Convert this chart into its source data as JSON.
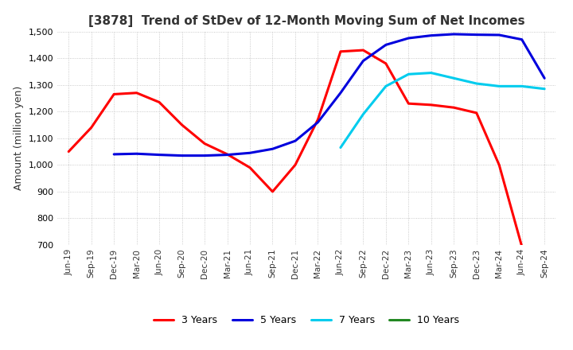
{
  "title": "[3878]  Trend of StDev of 12-Month Moving Sum of Net Incomes",
  "ylabel": "Amount (million yen)",
  "ylim": [
    700,
    1500
  ],
  "yticks": [
    700,
    800,
    900,
    1000,
    1100,
    1200,
    1300,
    1400,
    1500
  ],
  "background_color": "#ffffff",
  "x_labels": [
    "Jun-19",
    "Sep-19",
    "Dec-19",
    "Mar-20",
    "Jun-20",
    "Sep-20",
    "Dec-20",
    "Mar-21",
    "Jun-21",
    "Sep-21",
    "Dec-21",
    "Mar-22",
    "Jun-22",
    "Sep-22",
    "Dec-22",
    "Mar-23",
    "Jun-23",
    "Sep-23",
    "Dec-23",
    "Mar-24",
    "Jun-24",
    "Sep-24"
  ],
  "series": {
    "3 Years": {
      "color": "#ff0000",
      "data": [
        1050,
        1140,
        1265,
        1270,
        1235,
        1150,
        1080,
        1040,
        990,
        900,
        1000,
        1170,
        1425,
        1430,
        1380,
        1230,
        1225,
        1215,
        1195,
        1000,
        695,
        null
      ]
    },
    "5 Years": {
      "color": "#0000dd",
      "data": [
        null,
        null,
        1040,
        1042,
        1038,
        1035,
        1035,
        1038,
        1045,
        1060,
        1090,
        1160,
        1270,
        1390,
        1450,
        1475,
        1485,
        1490,
        1488,
        1487,
        1470,
        1325
      ]
    },
    "7 Years": {
      "color": "#00ccee",
      "data": [
        null,
        null,
        null,
        null,
        null,
        null,
        null,
        null,
        null,
        null,
        null,
        null,
        1065,
        1190,
        1295,
        1340,
        1345,
        1325,
        1305,
        1295,
        1295,
        1285
      ]
    },
    "10 Years": {
      "color": "#228822",
      "data": [
        null,
        null,
        null,
        null,
        null,
        null,
        null,
        null,
        null,
        null,
        null,
        null,
        null,
        null,
        null,
        null,
        null,
        null,
        null,
        null,
        null,
        null
      ]
    }
  },
  "legend_order": [
    "3 Years",
    "5 Years",
    "7 Years",
    "10 Years"
  ]
}
